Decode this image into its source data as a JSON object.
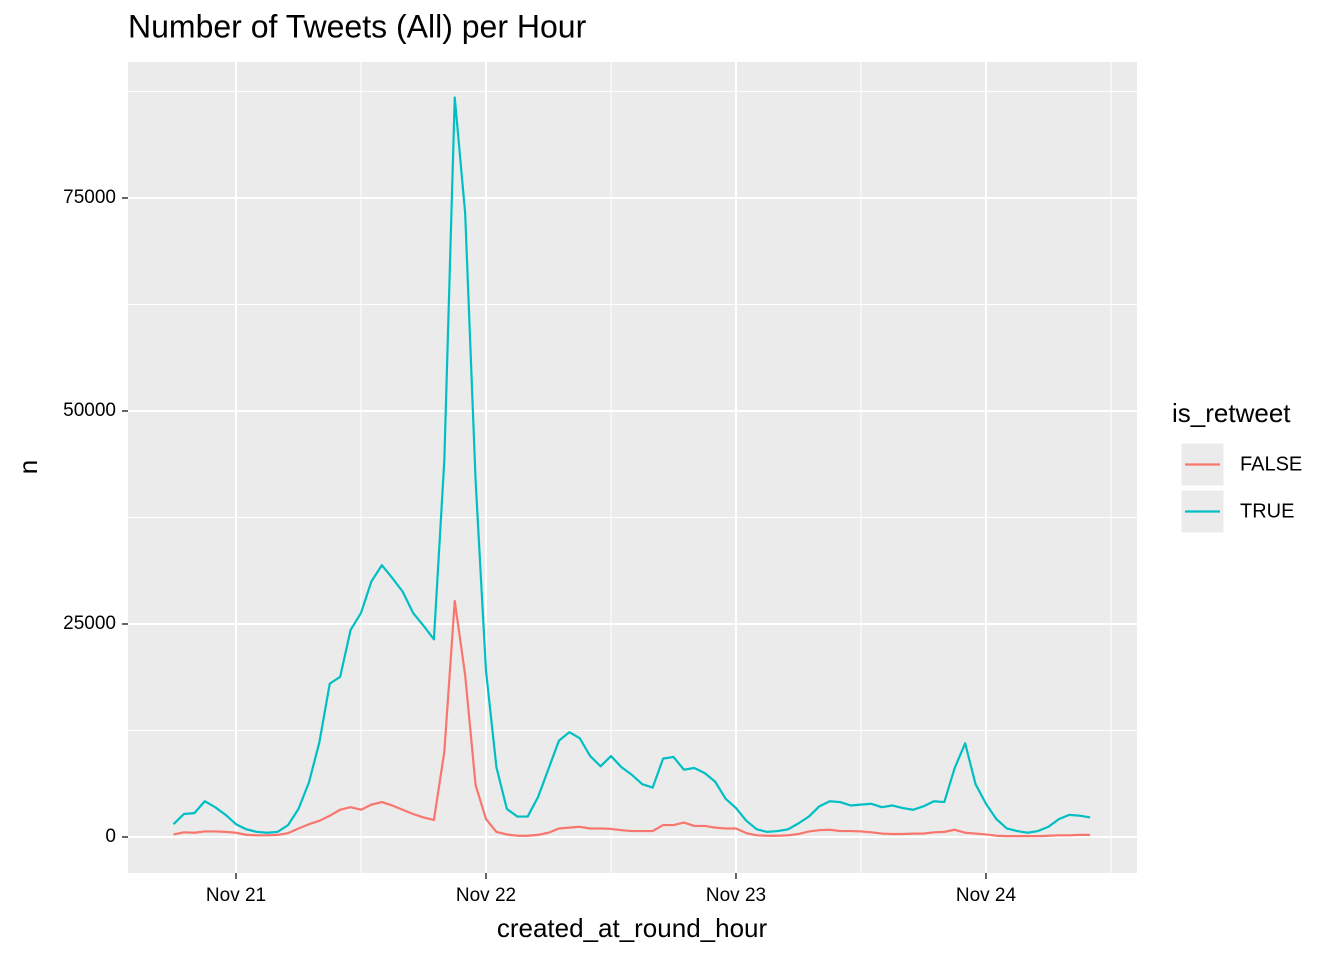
{
  "chart_data": {
    "type": "line",
    "title": "Number of Tweets (All) per Hour",
    "x_label": "created_at_round_hour",
    "y_label": "n",
    "legend_title": "is_retweet",
    "legend_position": "right",
    "x": [
      -6,
      -5,
      -4,
      -3,
      -2,
      -1,
      0,
      1,
      2,
      3,
      4,
      5,
      6,
      7,
      8,
      9,
      10,
      11,
      12,
      13,
      14,
      15,
      16,
      17,
      18,
      19,
      20,
      21,
      22,
      23,
      24,
      25,
      26,
      27,
      28,
      29,
      30,
      31,
      32,
      33,
      34,
      35,
      36,
      37,
      38,
      39,
      40,
      41,
      42,
      43,
      44,
      45,
      46,
      47,
      48,
      49,
      50,
      51,
      52,
      53,
      54,
      55,
      56,
      57,
      58,
      59,
      60,
      61,
      62,
      63,
      64,
      65,
      66,
      67,
      68,
      69,
      70,
      71,
      72,
      73,
      74,
      75,
      76,
      77,
      78,
      79,
      80,
      81,
      82
    ],
    "series": [
      {
        "name": "FALSE",
        "color": "#F8766D",
        "values": [
          300,
          550,
          500,
          650,
          650,
          600,
          500,
          250,
          200,
          200,
          250,
          450,
          1000,
          1500,
          1900,
          2500,
          3200,
          3500,
          3200,
          3800,
          4100,
          3700,
          3200,
          2700,
          2300,
          2000,
          10000,
          27700,
          19000,
          6100,
          2100,
          600,
          300,
          150,
          150,
          250,
          500,
          1000,
          1100,
          1200,
          1000,
          1000,
          950,
          800,
          700,
          700,
          700,
          1400,
          1400,
          1700,
          1300,
          1300,
          1100,
          1000,
          1000,
          450,
          200,
          150,
          150,
          200,
          350,
          650,
          800,
          850,
          700,
          700,
          650,
          550,
          400,
          350,
          350,
          400,
          400,
          550,
          600,
          850,
          500,
          400,
          300,
          150,
          100,
          100,
          100,
          100,
          150,
          200,
          200,
          250,
          250
        ]
      },
      {
        "name": "TRUE",
        "color": "#00BFC4",
        "values": [
          1500,
          2700,
          2800,
          4200,
          3500,
          2600,
          1500,
          900,
          600,
          500,
          600,
          1400,
          3300,
          6400,
          11100,
          18000,
          18800,
          24300,
          26300,
          30000,
          31900,
          30400,
          28800,
          26300,
          24800,
          23200,
          44200,
          86800,
          73200,
          41900,
          19500,
          8200,
          3300,
          2400,
          2400,
          4700,
          8000,
          11300,
          12300,
          11600,
          9500,
          8300,
          9500,
          8200,
          7300,
          6200,
          5800,
          9200,
          9400,
          7900,
          8100,
          7500,
          6500,
          4500,
          3400,
          1900,
          900,
          600,
          700,
          900,
          1600,
          2400,
          3600,
          4200,
          4100,
          3700,
          3800,
          3900,
          3500,
          3700,
          3400,
          3200,
          3600,
          4200,
          4100,
          8100,
          11000,
          6200,
          3900,
          2100,
          1000,
          700,
          500,
          700,
          1200,
          2100,
          2600,
          2500,
          2300
        ]
      }
    ],
    "xlim": [
      -10.37,
      86.5
    ],
    "xticks": [
      {
        "value": 0,
        "label": "Nov 21"
      },
      {
        "value": 24,
        "label": "Nov 22"
      },
      {
        "value": 48,
        "label": "Nov 23"
      },
      {
        "value": 72,
        "label": "Nov 24"
      }
    ],
    "minor_xticks": [
      12,
      36,
      60,
      84
    ],
    "ylim": [
      -4225,
      90960
    ],
    "yticks": [
      0,
      25000,
      50000,
      75000
    ],
    "minor_yticks": [
      12500,
      37500,
      62500,
      87500
    ],
    "grid": true
  }
}
